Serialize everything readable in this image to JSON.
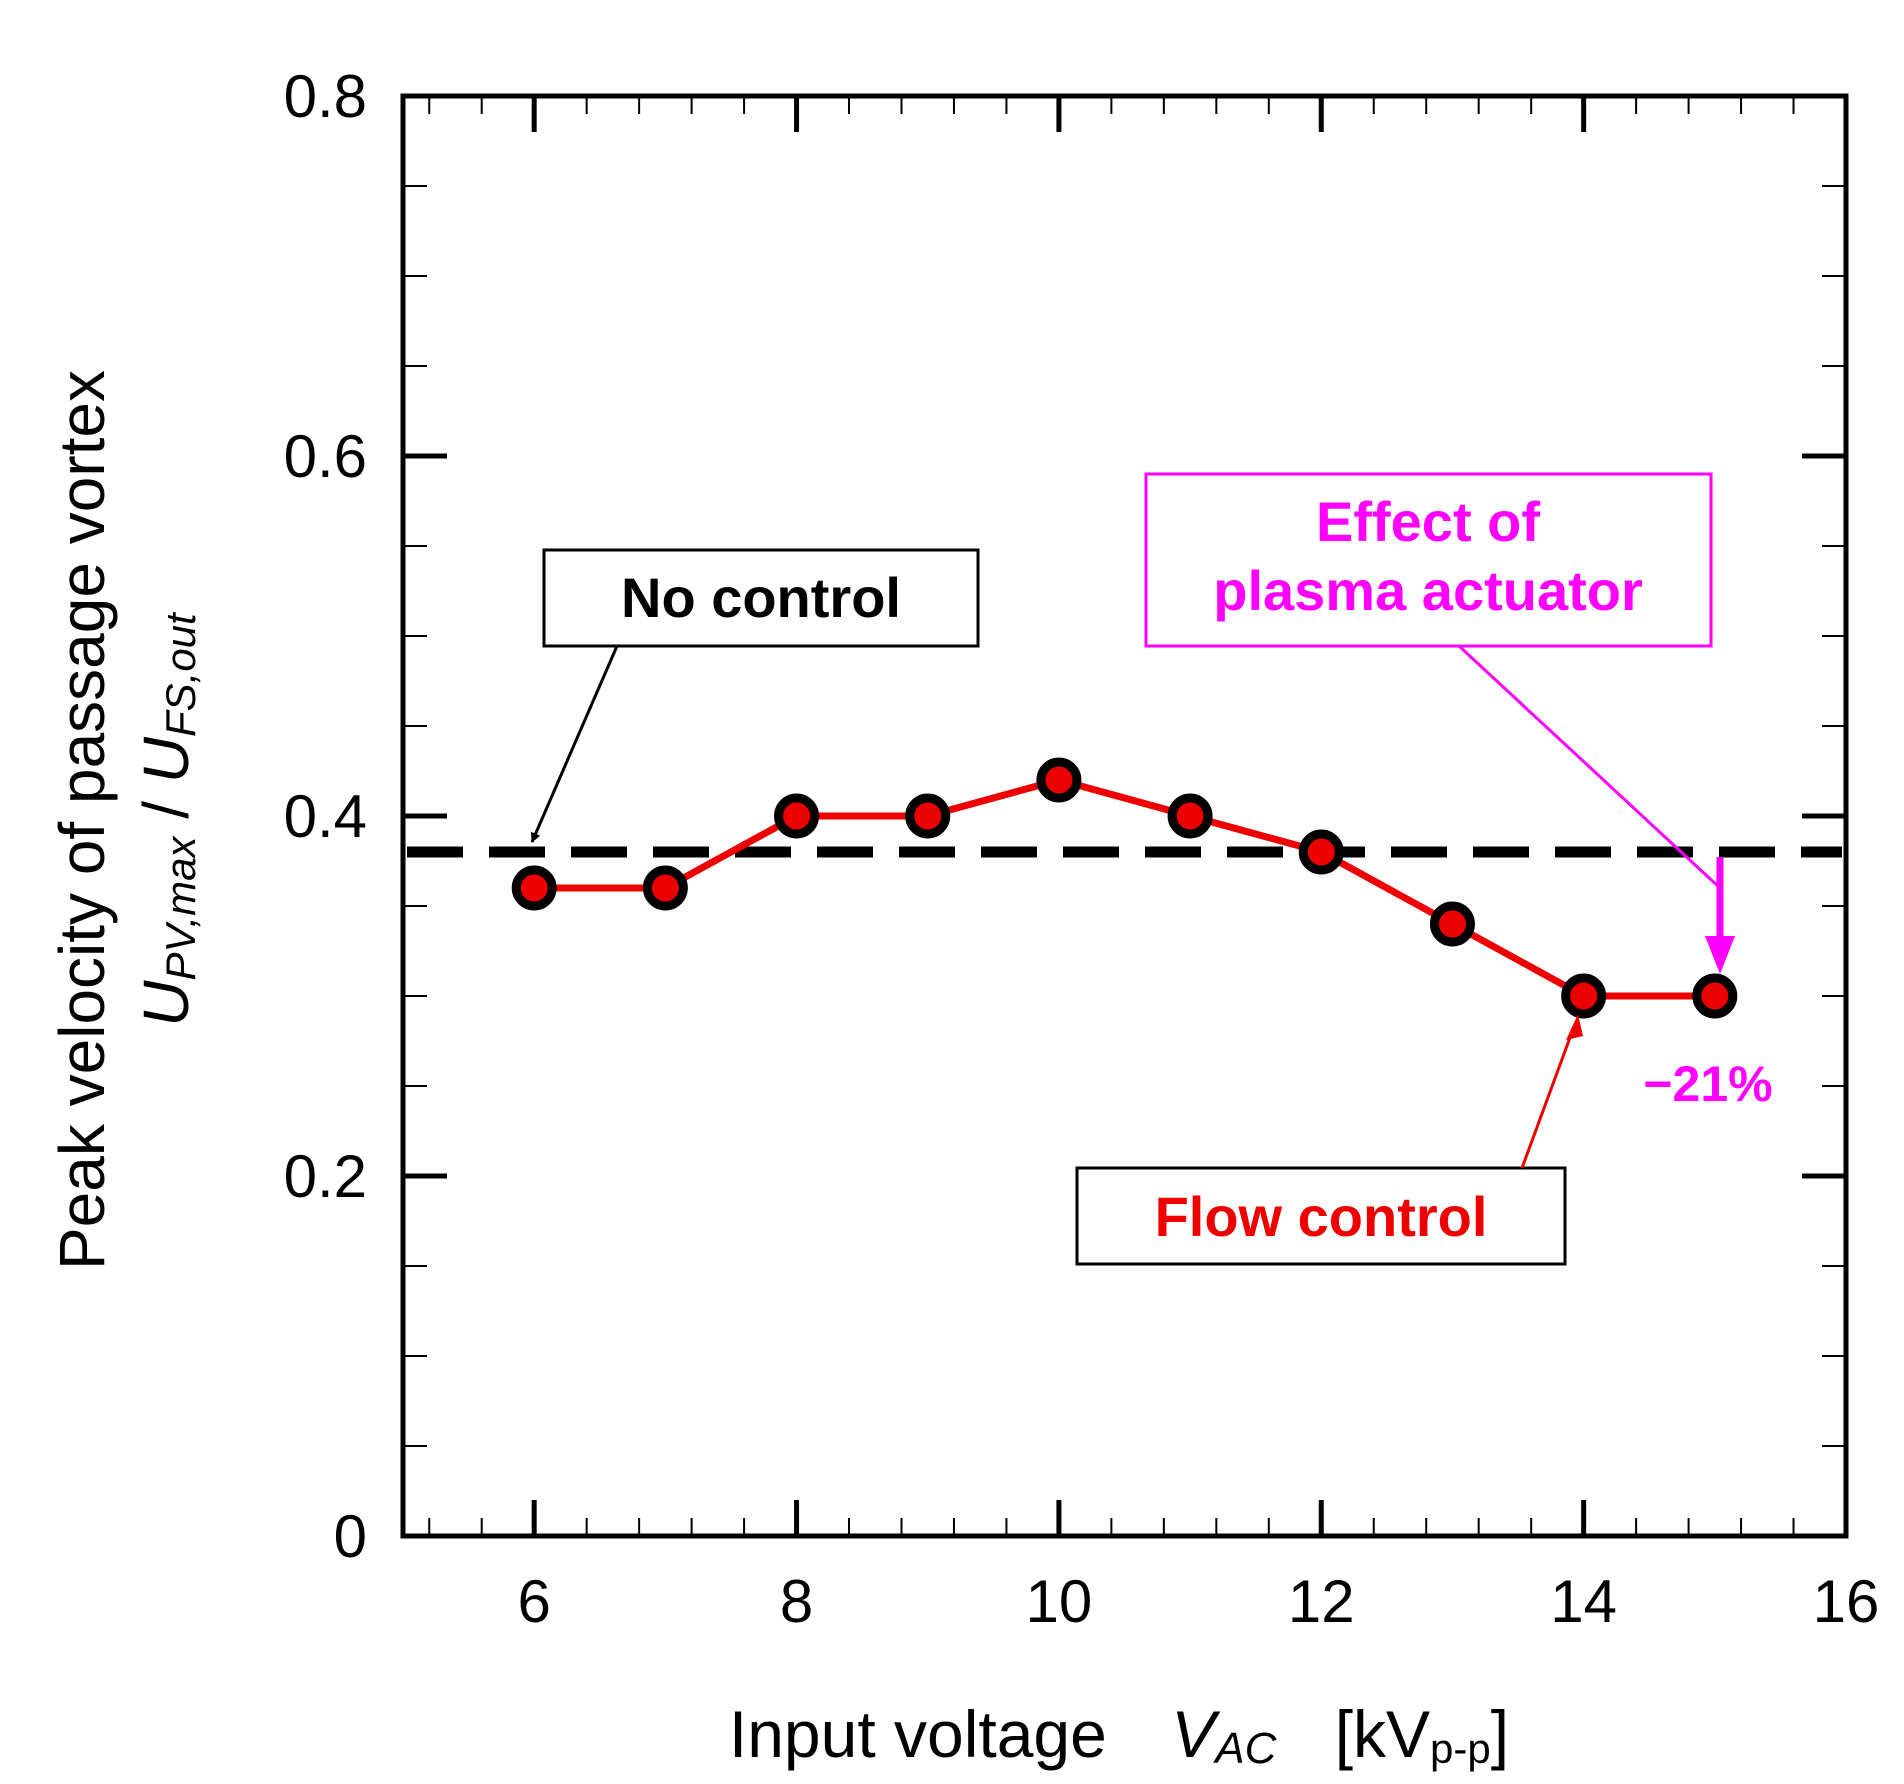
{
  "chart_data": {
    "type": "line",
    "xlabel": {
      "text": "Input voltage",
      "symbol": "V",
      "symbol_sub": "AC",
      "unit_open": "[kV",
      "unit_sub": "p-p",
      "unit_close": "]"
    },
    "ylabel": {
      "line1": "Peak velocity of passage vortex",
      "num": "U",
      "num_sub": "PV,max",
      "slash": " / ",
      "den": "U",
      "den_sub": "FS,out"
    },
    "xlim": [
      5,
      16
    ],
    "ylim": [
      0,
      0.8
    ],
    "x_major_ticks": [
      6,
      8,
      10,
      12,
      14,
      16
    ],
    "x_tick_labels": [
      "6",
      "8",
      "10",
      "12",
      "14",
      "16"
    ],
    "x_minor_step": 0.4,
    "y_major_ticks": [
      0,
      0.2,
      0.4,
      0.6,
      0.8
    ],
    "y_tick_labels": [
      "0",
      "0.2",
      "0.4",
      "0.6",
      "0.8"
    ],
    "y_minor_step": 0.05,
    "grid": false,
    "series": [
      {
        "name": "Flow control",
        "color": "#ee0000",
        "marker": "circle",
        "x": [
          6,
          7,
          8,
          9,
          10,
          11,
          12,
          13,
          14,
          15
        ],
        "values": [
          0.36,
          0.36,
          0.4,
          0.4,
          0.42,
          0.4,
          0.38,
          0.34,
          0.3,
          0.3
        ]
      },
      {
        "name": "No control",
        "color": "#000000",
        "style": "dashed",
        "y": 0.38
      }
    ],
    "annotations": {
      "no_control": {
        "label": "No control",
        "color": "#000000"
      },
      "flow_control": {
        "label": "Flow control",
        "color": "#ee0000"
      },
      "effect": {
        "line1": "Effect of",
        "line2": "plasma actuator",
        "color": "#ff00ff"
      },
      "reduction": {
        "label": "−21%",
        "color": "#ff00ff"
      }
    }
  }
}
